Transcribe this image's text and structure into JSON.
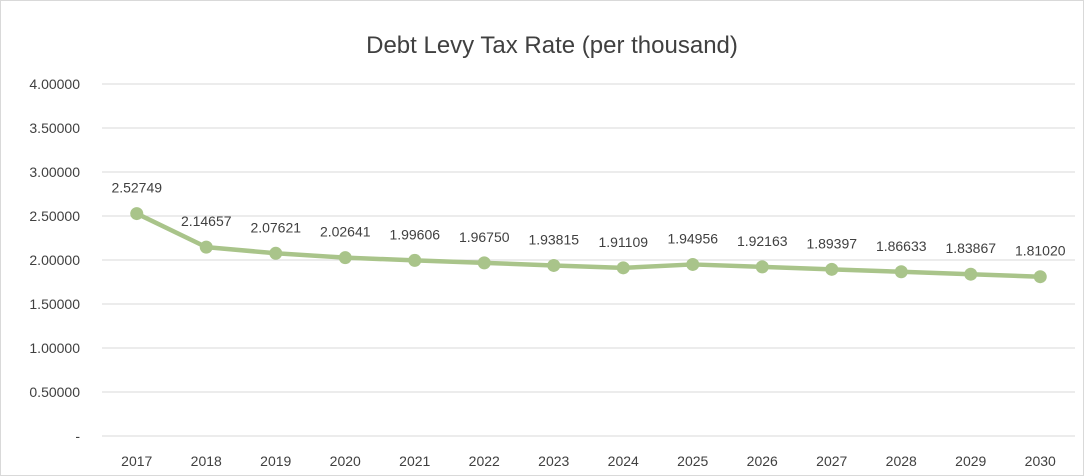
{
  "chart_data": {
    "type": "line",
    "title": "Debt Levy Tax Rate (per thousand)",
    "xlabel": "",
    "ylabel": "",
    "categories": [
      "2017",
      "2018",
      "2019",
      "2020",
      "2021",
      "2022",
      "2023",
      "2024",
      "2025",
      "2026",
      "2027",
      "2028",
      "2029",
      "2030"
    ],
    "series": [
      {
        "values": [
          2.52749,
          2.14657,
          2.07621,
          2.02641,
          1.99606,
          1.9675,
          1.93815,
          1.91109,
          1.94956,
          1.92163,
          1.89397,
          1.86633,
          1.83867,
          1.8102
        ],
        "labels": [
          "2.52749",
          "2.14657",
          "2.07621",
          "2.02641",
          "1.99606",
          "1.96750",
          "1.93815",
          "1.91109",
          "1.94956",
          "1.92163",
          "1.89397",
          "1.86633",
          "1.83867",
          "1.81020"
        ],
        "color": "#a9c48a"
      }
    ],
    "ylim": [
      0,
      4
    ],
    "yticks": [
      0,
      0.5,
      1,
      1.5,
      2,
      2.5,
      3,
      3.5,
      4
    ],
    "ytick_labels": [
      "-",
      "0.50000",
      "1.00000",
      "1.50000",
      "2.00000",
      "2.50000",
      "3.00000",
      "3.50000",
      "4.00000"
    ],
    "grid": true,
    "legend": "none",
    "gridline_color": "#d9d9d9",
    "text_color": "#404040"
  }
}
